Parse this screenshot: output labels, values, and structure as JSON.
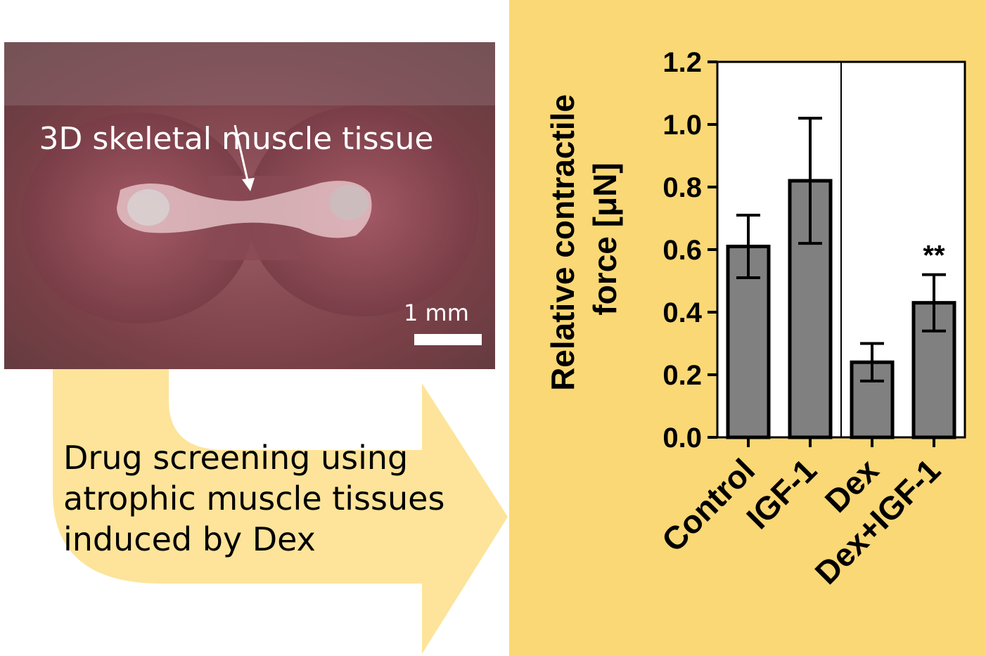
{
  "photo": {
    "caption": "3D skeletal muscle tissue",
    "scale_bar_label": "1 mm"
  },
  "drug_text": {
    "line1": "Drug screening using",
    "line2": "atrophic muscle tissues",
    "line3": "induced by Dex"
  },
  "colors": {
    "chart_background": "#fad875",
    "arrow": "#fde49a",
    "bar_fill": "#808080"
  },
  "chart_data": {
    "type": "bar",
    "categories": [
      "Control",
      "IGF-1",
      "Dex",
      "Dex+IGF-1"
    ],
    "values": [
      0.61,
      0.82,
      0.24,
      0.43
    ],
    "errors": [
      0.1,
      0.2,
      0.06,
      0.09
    ],
    "annotations": [
      "",
      "",
      "",
      "**"
    ],
    "ylabel_line1": "Relative contractile",
    "ylabel_line2": "force [μN]",
    "ylim": [
      0,
      1.2
    ],
    "yticks": [
      "0.0",
      "0.2",
      "0.4",
      "0.6",
      "0.8",
      "1.0",
      "1.2"
    ],
    "divider_between_groups": true,
    "grid": false
  }
}
